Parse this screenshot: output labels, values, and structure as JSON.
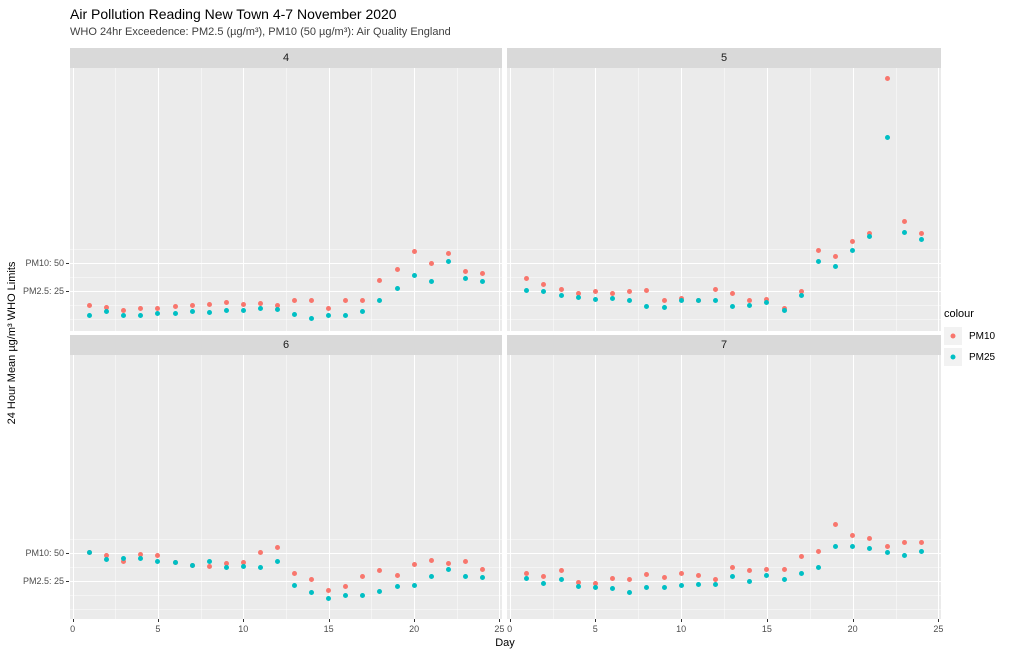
{
  "title": "Air Pollution Reading New Town 4-7 November 2020",
  "subtitle": "WHO 24hr Exceedence: PM2.5 (µg/m³),  PM10 (50 µg/m³): Air Quality England",
  "axes": {
    "x": {
      "title": "Day",
      "ticks": [
        "0",
        "5",
        "10",
        "15",
        "20",
        "25"
      ],
      "tick_values": [
        0,
        5,
        10,
        15,
        20,
        25
      ]
    },
    "y": {
      "title": "24 Hour Mean µg/m³ WHO Limits",
      "ticks": [
        {
          "label": "PM10: 50",
          "value": 50
        },
        {
          "label": "PM2.5: 25",
          "value": 25
        }
      ]
    }
  },
  "legend": {
    "title": "colour",
    "items": [
      {
        "label": "PM10",
        "color": "#F8766D"
      },
      {
        "label": "PM25",
        "color": "#00BFC4"
      }
    ]
  },
  "colors": {
    "pm10": "#F8766D",
    "pm25": "#00BFC4",
    "panel_bg": "#EBEBEB",
    "strip_bg": "#D9D9D9",
    "grid_major": "#FFFFFF",
    "legend_key_bg": "#F2F2F2"
  },
  "chart_data": {
    "type": "scatter",
    "title": "Air Pollution Reading New Town 4-7 November 2020",
    "subtitle": "WHO 24hr Exceedence: PM2.5 (µg/m³),  PM10 (50 µg/m³): Air Quality England",
    "xlabel": "Day",
    "ylabel": "24 Hour Mean µg/m³ WHO Limits",
    "xlim": [
      0,
      25
    ],
    "y_major_breaks": [
      25,
      50
    ],
    "y_minor_breaks": [
      0,
      12.5,
      37.5,
      62.5
    ],
    "x_major_breaks": [
      0,
      5,
      10,
      15,
      20,
      25
    ],
    "x_minor_breaks": [
      2.5,
      7.5,
      12.5,
      17.5,
      22.5
    ],
    "legend_position": "right",
    "facet_variable": "day of November 2020",
    "x": [
      1,
      2,
      3,
      4,
      5,
      6,
      7,
      8,
      9,
      10,
      11,
      12,
      13,
      14,
      15,
      16,
      17,
      18,
      19,
      20,
      21,
      22,
      23,
      24
    ],
    "facets": [
      {
        "name": "4",
        "series": [
          {
            "name": "PM10",
            "values": [
              12.2,
              10.1,
              7.4,
              9.8,
              9.5,
              11.6,
              11.9,
              13.1,
              15.2,
              13.1,
              13.7,
              11.9,
              16.3,
              16.3,
              9.6,
              16.3,
              16.3,
              34.2,
              43.8,
              60.7,
              49.7,
              58.7,
              42.9,
              40.8
            ]
          },
          {
            "name": "PM25",
            "values": [
              3.6,
              6.7,
              3.6,
              3.3,
              5.1,
              5.4,
              6.9,
              5.7,
              8.0,
              7.4,
              9.5,
              8.6,
              4.5,
              0.6,
              2.9,
              2.9,
              6.5,
              17.0,
              27.7,
              39.3,
              33.9,
              51.2,
              36.3,
              33.3
            ]
          }
        ]
      },
      {
        "name": "5",
        "series": [
          {
            "name": "PM10",
            "values": [
              36.3,
              31.0,
              26.5,
              23.2,
              24.7,
              22.6,
              25.0,
              25.3,
              16.7,
              18.1,
              17.0,
              26.8,
              22.9,
              16.7,
              17.9,
              9.5,
              24.4,
              61.0,
              55.6,
              69.0,
              76.5,
              215.0,
              87.5,
              76.2
            ]
          },
          {
            "name": "PM25",
            "values": [
              25.9,
              24.7,
              20.8,
              19.4,
              17.6,
              18.5,
              17.0,
              11.0,
              10.7,
              16.7,
              16.7,
              16.7,
              11.0,
              11.9,
              14.6,
              8.0,
              21.2,
              51.2,
              46.7,
              61.6,
              74.1,
              162.0,
              77.4,
              71.4
            ]
          }
        ]
      },
      {
        "name": "6",
        "series": [
          {
            "name": "PM10",
            "values": [
              50.5,
              48.2,
              42.9,
              49.1,
              48.2,
              42.0,
              38.7,
              37.8,
              40.5,
              41.4,
              50.6,
              54.8,
              32.1,
              26.2,
              16.3,
              20.3,
              28.8,
              34.8,
              30.4,
              40.2,
              43.5,
              41.1,
              42.9,
              35.4
            ]
          },
          {
            "name": "PM25",
            "values": [
              50.6,
              44.6,
              45.2,
              45.5,
              42.9,
              41.6,
              39.3,
              42.6,
              37.2,
              38.4,
              37.2,
              42.6,
              20.9,
              14.9,
              9.5,
              12.5,
              12.5,
              15.4,
              20.3,
              21.4,
              28.8,
              35.1,
              28.8,
              27.9
            ]
          }
        ]
      },
      {
        "name": "7",
        "series": [
          {
            "name": "PM10",
            "values": [
              31.3,
              29.5,
              34.8,
              23.8,
              22.6,
              27.7,
              26.8,
              30.6,
              28.6,
              31.9,
              30.1,
              26.2,
              37.5,
              34.2,
              35.1,
              35.4,
              47.3,
              51.2,
              75.6,
              66.1,
              63.4,
              56.0,
              59.6,
              59.6
            ]
          },
          {
            "name": "PM25",
            "values": [
              27.4,
              22.9,
              26.8,
              20.3,
              19.0,
              18.1,
              14.9,
              19.4,
              19.0,
              20.8,
              22.3,
              22.3,
              29.5,
              24.4,
              29.7,
              26.8,
              31.3,
              36.9,
              55.6,
              56.0,
              54.2,
              50.3,
              48.0,
              51.5
            ]
          }
        ]
      }
    ]
  }
}
